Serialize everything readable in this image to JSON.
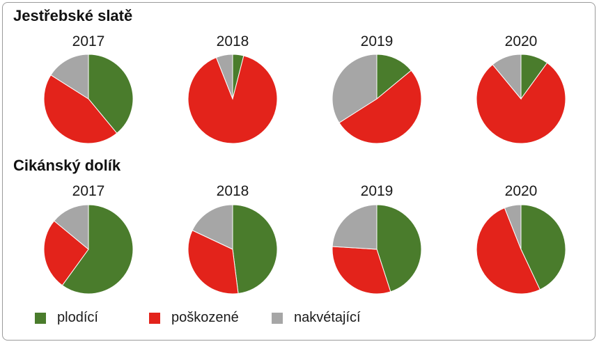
{
  "chart_data": [
    {
      "type": "pie",
      "title": "Jestřebské slatě",
      "categories": [
        "plodící",
        "poškozené",
        "nakvétající"
      ],
      "colors": [
        "#4a7c2c",
        "#e3231b",
        "#a6a6a6"
      ],
      "series": [
        {
          "name": "2017",
          "values": [
            39,
            45,
            16
          ]
        },
        {
          "name": "2018",
          "values": [
            4,
            90,
            6
          ]
        },
        {
          "name": "2019",
          "values": [
            14,
            52,
            34
          ]
        },
        {
          "name": "2020",
          "values": [
            10,
            79,
            11
          ]
        }
      ]
    },
    {
      "type": "pie",
      "title": "Cikánský dolík",
      "categories": [
        "plodící",
        "poškozené",
        "nakvétající"
      ],
      "colors": [
        "#4a7c2c",
        "#e3231b",
        "#a6a6a6"
      ],
      "series": [
        {
          "name": "2017",
          "values": [
            60,
            26,
            14
          ]
        },
        {
          "name": "2018",
          "values": [
            48,
            34,
            18
          ]
        },
        {
          "name": "2019",
          "values": [
            45,
            31,
            24
          ]
        },
        {
          "name": "2020",
          "values": [
            43,
            51,
            6
          ]
        }
      ]
    }
  ],
  "legend": [
    {
      "label": "plodící",
      "color": "#4a7c2c"
    },
    {
      "label": "poškozené",
      "color": "#e3231b"
    },
    {
      "label": "nakvétající",
      "color": "#a6a6a6"
    }
  ]
}
